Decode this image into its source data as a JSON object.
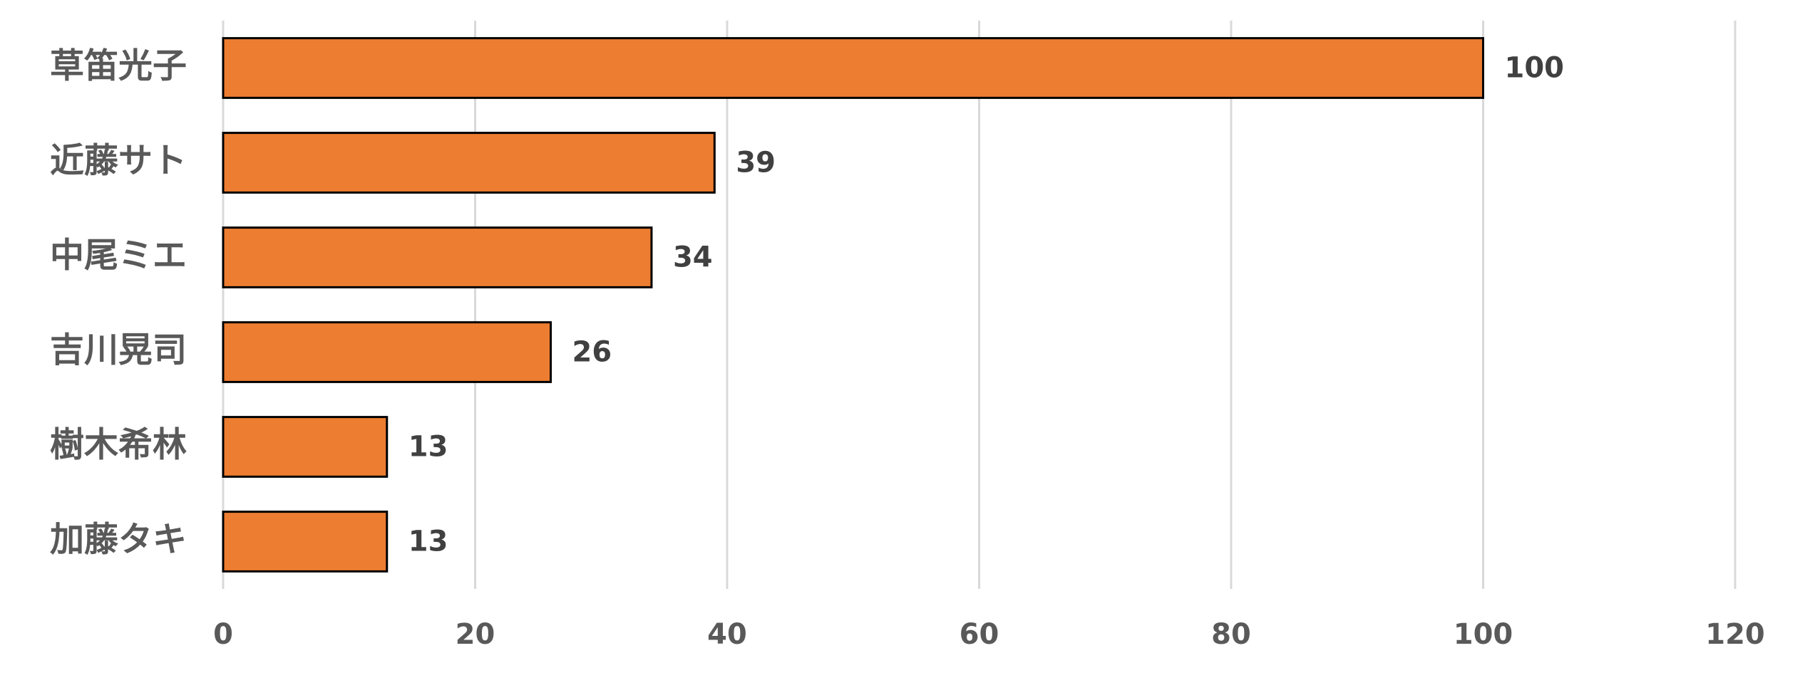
{
  "chart_data": {
    "type": "bar",
    "orientation": "horizontal",
    "categories": [
      "草笛光子",
      "近藤サト",
      "中尾ミエ",
      "吉川晃司",
      "樹木希林",
      "加藤タキ"
    ],
    "values": [
      100,
      39,
      34,
      26,
      13,
      13
    ],
    "color": "#ed7d31",
    "xlim": [
      0,
      120
    ],
    "xticks": [
      0,
      20,
      40,
      60,
      80,
      100,
      120
    ],
    "grid": true,
    "data_labels": true
  }
}
